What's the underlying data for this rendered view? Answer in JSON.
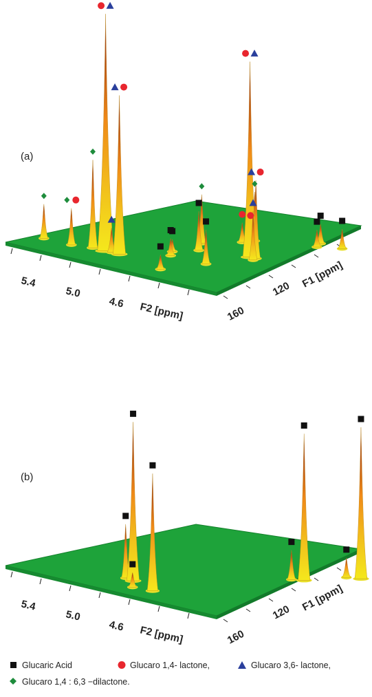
{
  "chart_data": [
    {
      "type": "3d-surface",
      "panel_label": "(a)",
      "x_axis": {
        "label": "F2 [ppm]",
        "ticks": [
          "5.4",
          "5.0",
          "4.6"
        ]
      },
      "y_axis": {
        "label": "F1 [ppm]",
        "ticks": [
          "160",
          "120"
        ]
      },
      "peaks": [
        {
          "f2": 5.5,
          "f1": 168,
          "height": 0.14,
          "markers": [
            "diamond"
          ]
        },
        {
          "f2": 5.22,
          "f1": 168,
          "height": 0.15,
          "markers": [
            "diamond",
            "circle"
          ]
        },
        {
          "f2": 5.05,
          "f1": 166,
          "height": 0.36,
          "markers": [
            "diamond"
          ]
        },
        {
          "f2": 4.92,
          "f1": 166,
          "height": 0.97,
          "markers": [
            "circle",
            "triangle"
          ]
        },
        {
          "f2": 4.78,
          "f1": 166,
          "height": 0.65,
          "markers": [
            "triangle",
            "circle"
          ]
        },
        {
          "f2": 4.86,
          "f1": 166,
          "height": 0.1,
          "markers": [
            "triangle"
          ]
        },
        {
          "f2": 4.58,
          "f1": 152,
          "height": 0.05,
          "markers": [
            "square"
          ]
        },
        {
          "f2": 4.5,
          "f1": 156,
          "height": 0.07,
          "markers": [
            "square"
          ]
        },
        {
          "f2": 4.48,
          "f1": 145,
          "height": 0.16,
          "markers": [
            "square"
          ]
        },
        {
          "f2": 4.62,
          "f1": 138,
          "height": 0.2,
          "markers": [
            "diamond"
          ]
        },
        {
          "f2": 4.42,
          "f1": 124,
          "height": 0.2,
          "markers": [
            "diamond"
          ]
        },
        {
          "f2": 4.45,
          "f1": 128,
          "height": 0.08,
          "markers": [
            "circle"
          ]
        },
        {
          "f2": 4.22,
          "f1": 134,
          "height": 0.11,
          "markers": [
            "circle"
          ]
        },
        {
          "f2": 4.08,
          "f1": 140,
          "height": 0.8,
          "markers": [
            "circle",
            "triangle"
          ]
        },
        {
          "f2": 4.02,
          "f1": 140,
          "height": 0.32,
          "markers": [
            "triangle",
            "circle"
          ]
        },
        {
          "f2": 4.0,
          "f1": 142,
          "height": 0.2,
          "markers": [
            "triangle"
          ]
        },
        {
          "f2": 4.14,
          "f1": 156,
          "height": 0.14,
          "markers": [
            "square"
          ]
        },
        {
          "f2": 4.24,
          "f1": 171,
          "height": 0.06,
          "markers": [
            "square"
          ]
        },
        {
          "f2": 3.98,
          "f1": 116,
          "height": 0.07,
          "markers": [
            "square"
          ]
        },
        {
          "f2": 4.04,
          "f1": 112,
          "height": 0.08,
          "markers": [
            "square"
          ]
        },
        {
          "f2": 3.82,
          "f1": 112,
          "height": 0.08,
          "markers": [
            "square"
          ]
        }
      ]
    },
    {
      "type": "3d-surface",
      "panel_label": "(b)",
      "x_axis": {
        "label": "F2 [ppm]",
        "ticks": [
          "5.4",
          "5.0",
          "4.6"
        ]
      },
      "y_axis": {
        "label": "F1 [ppm]",
        "ticks": [
          "160",
          "120"
        ]
      },
      "peaks": [
        {
          "f2": 4.74,
          "f1": 165,
          "height": 0.22,
          "markers": [
            "square"
          ]
        },
        {
          "f2": 4.64,
          "f1": 166,
          "height": 0.65,
          "markers": [
            "square"
          ]
        },
        {
          "f2": 4.5,
          "f1": 172,
          "height": 0.06,
          "markers": [
            "square"
          ]
        },
        {
          "f2": 4.32,
          "f1": 171,
          "height": 0.48,
          "markers": [
            "square"
          ]
        },
        {
          "f2": 3.9,
          "f1": 130,
          "height": 0.12,
          "markers": [
            "square"
          ]
        },
        {
          "f2": 3.82,
          "f1": 128,
          "height": 0.6,
          "markers": [
            "square"
          ]
        },
        {
          "f2": 3.68,
          "f1": 116,
          "height": 0.08,
          "markers": [
            "square"
          ]
        },
        {
          "f2": 3.58,
          "f1": 114,
          "height": 0.62,
          "markers": [
            "square"
          ]
        }
      ]
    }
  ],
  "legend": [
    {
      "marker": "square",
      "color": "#111111",
      "label": "Glucaric Acid"
    },
    {
      "marker": "circle",
      "color": "#e8262e",
      "label": "Glucaro 1,4- lactone,"
    },
    {
      "marker": "triangle",
      "color": "#2a3f9c",
      "label": "Glucaro 3,6- lactone,"
    },
    {
      "marker": "diamond",
      "color": "#1e8c3c",
      "label": "Glucaro 1,4 : 6,3 −dilactone."
    }
  ],
  "colors": {
    "plane": "#1ea33a",
    "plane_edge": "#13802b",
    "peak_tip": "#8a1c12",
    "peak_mid": "#f08a18",
    "peak_base": "#f4e81c"
  }
}
